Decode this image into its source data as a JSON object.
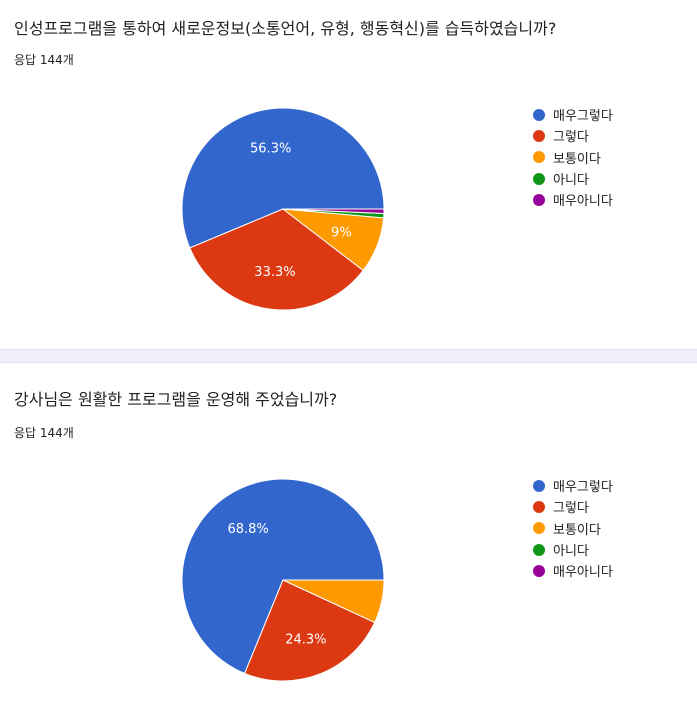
{
  "responses_label": "응답 144개",
  "colors": {
    "매우그렇다": "#3366cc",
    "그렇다": "#dc3912",
    "보통이다": "#ff9900",
    "아니다": "#109618",
    "매우아니다": "#990099"
  },
  "chart_data": [
    {
      "type": "pie",
      "title": "인성프로그램을 통하여 새로운정보(소통언어, 유형, 행동혁신)를 습득하였습니까?",
      "subtitle": "응답 144개",
      "legend_position": "right",
      "categories": [
        "매우그렇다",
        "그렇다",
        "보통이다",
        "아니다",
        "매우아니다"
      ],
      "values": [
        56.3,
        33.3,
        9,
        0.7,
        0.7
      ],
      "slice_labels": [
        "56.3%",
        "33.3%",
        "9%",
        "",
        ""
      ]
    },
    {
      "type": "pie",
      "title": "강사님은 원활한 프로그램을 운영해 주었습니까?",
      "subtitle": "응답 144개",
      "legend_position": "right",
      "categories": [
        "매우그렇다",
        "그렇다",
        "보통이다",
        "아니다",
        "매우아니다"
      ],
      "values": [
        68.8,
        24.3,
        6.9,
        0,
        0
      ],
      "slice_labels": [
        "68.8%",
        "24.3%",
        "",
        "",
        ""
      ]
    }
  ]
}
